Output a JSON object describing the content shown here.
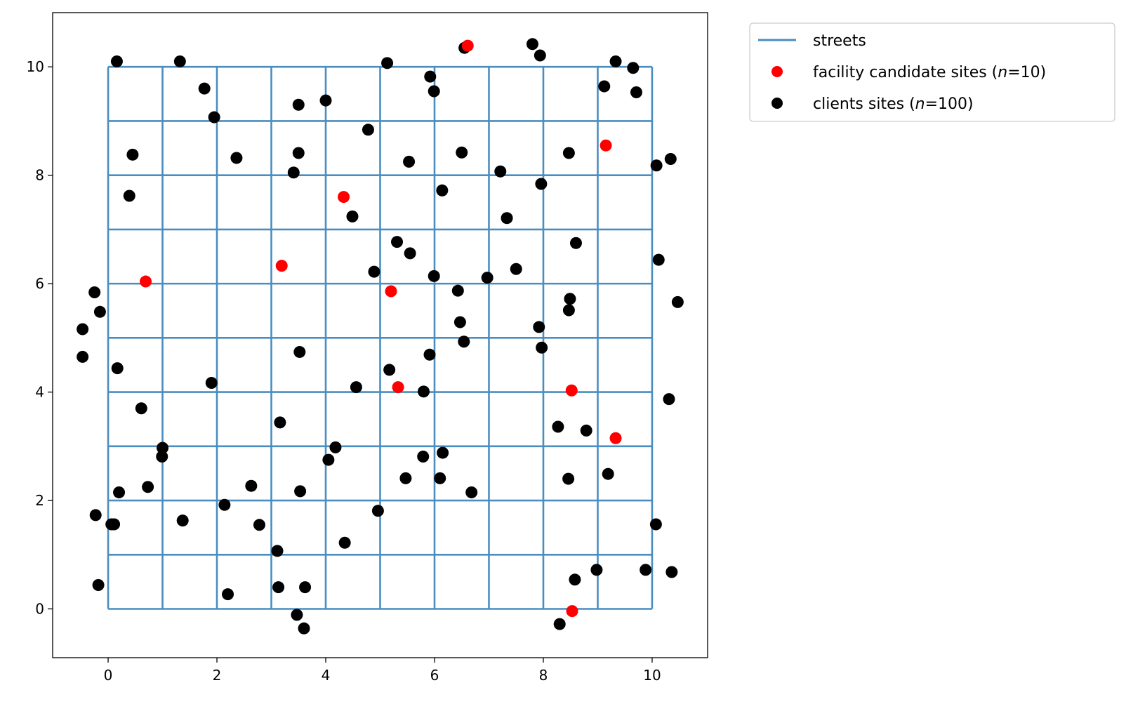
{
  "chart_data": {
    "type": "scatter",
    "title": "",
    "xlabel": "",
    "ylabel": "",
    "xlim": [
      -1.02,
      11.02
    ],
    "ylim": [
      -0.9,
      11.0
    ],
    "xticks": [
      0,
      2,
      4,
      6,
      8,
      10
    ],
    "yticks": [
      0,
      2,
      4,
      6,
      8,
      10
    ],
    "grid": false,
    "legend_position": "outside-top-right",
    "streets": {
      "name": "streets",
      "color": "#4a8dc0",
      "x_range": [
        0,
        10
      ],
      "y_range": [
        0,
        10
      ],
      "vertical_x": [
        0,
        1,
        2,
        3,
        4,
        5,
        6,
        7,
        8,
        9,
        10
      ],
      "horizontal_y": [
        0,
        1,
        2,
        3,
        4,
        5,
        6,
        7,
        8,
        9,
        10
      ]
    },
    "series": [
      {
        "name": "clients sites (n=100)",
        "legend_prefix": "clients sites (",
        "legend_italic": "n",
        "legend_suffix": "=100)",
        "color": "#000000",
        "points": [
          [
            0.16,
            10.1
          ],
          [
            1.32,
            10.1
          ],
          [
            1.77,
            9.6
          ],
          [
            1.95,
            9.07
          ],
          [
            0.45,
            8.38
          ],
          [
            2.36,
            8.32
          ],
          [
            0.39,
            7.62
          ],
          [
            3.5,
            9.3
          ],
          [
            4.0,
            9.38
          ],
          [
            3.5,
            8.41
          ],
          [
            3.41,
            8.05
          ],
          [
            4.78,
            8.84
          ],
          [
            5.13,
            10.07
          ],
          [
            5.92,
            9.82
          ],
          [
            5.99,
            9.55
          ],
          [
            5.53,
            8.25
          ],
          [
            6.5,
            8.42
          ],
          [
            6.55,
            10.35
          ],
          [
            7.8,
            10.42
          ],
          [
            7.94,
            10.21
          ],
          [
            9.12,
            9.64
          ],
          [
            9.33,
            10.1
          ],
          [
            9.65,
            9.98
          ],
          [
            9.71,
            9.53
          ],
          [
            8.47,
            8.41
          ],
          [
            7.96,
            7.84
          ],
          [
            7.21,
            8.07
          ],
          [
            6.14,
            7.72
          ],
          [
            10.08,
            8.18
          ],
          [
            10.34,
            8.3
          ],
          [
            4.49,
            7.24
          ],
          [
            7.33,
            7.21
          ],
          [
            5.31,
            6.77
          ],
          [
            5.55,
            6.56
          ],
          [
            8.6,
            6.75
          ],
          [
            10.12,
            6.44
          ],
          [
            4.89,
            6.22
          ],
          [
            5.99,
            6.14
          ],
          [
            6.97,
            6.11
          ],
          [
            7.5,
            6.27
          ],
          [
            6.43,
            5.87
          ],
          [
            8.49,
            5.72
          ],
          [
            8.47,
            5.51
          ],
          [
            10.47,
            5.66
          ],
          [
            -0.25,
            5.84
          ],
          [
            -0.15,
            5.48
          ],
          [
            -0.47,
            5.16
          ],
          [
            -0.47,
            4.65
          ],
          [
            6.47,
            5.29
          ],
          [
            6.54,
            4.93
          ],
          [
            7.92,
            5.2
          ],
          [
            7.97,
            4.82
          ],
          [
            3.52,
            4.74
          ],
          [
            5.17,
            4.41
          ],
          [
            5.91,
            4.69
          ],
          [
            0.17,
            4.44
          ],
          [
            1.9,
            4.17
          ],
          [
            4.56,
            4.09
          ],
          [
            5.8,
            4.01
          ],
          [
            10.31,
            3.87
          ],
          [
            0.61,
            3.7
          ],
          [
            3.16,
            3.44
          ],
          [
            8.27,
            3.36
          ],
          [
            8.79,
            3.29
          ],
          [
            1.0,
            2.97
          ],
          [
            0.99,
            2.81
          ],
          [
            4.18,
            2.98
          ],
          [
            4.05,
            2.75
          ],
          [
            5.79,
            2.81
          ],
          [
            6.15,
            2.88
          ],
          [
            9.19,
            2.49
          ],
          [
            8.46,
            2.4
          ],
          [
            6.1,
            2.41
          ],
          [
            5.47,
            2.41
          ],
          [
            6.68,
            2.15
          ],
          [
            0.73,
            2.25
          ],
          [
            0.2,
            2.15
          ],
          [
            2.63,
            2.27
          ],
          [
            3.53,
            2.17
          ],
          [
            2.14,
            1.92
          ],
          [
            4.96,
            1.81
          ],
          [
            -0.23,
            1.73
          ],
          [
            0.06,
            1.56
          ],
          [
            0.11,
            1.56
          ],
          [
            1.37,
            1.63
          ],
          [
            2.78,
            1.55
          ],
          [
            10.07,
            1.56
          ],
          [
            4.35,
            1.22
          ],
          [
            3.11,
            1.07
          ],
          [
            -0.18,
            0.44
          ],
          [
            3.13,
            0.4
          ],
          [
            3.62,
            0.4
          ],
          [
            2.2,
            0.27
          ],
          [
            8.58,
            0.54
          ],
          [
            8.98,
            0.72
          ],
          [
            9.88,
            0.72
          ],
          [
            10.36,
            0.68
          ],
          [
            3.47,
            -0.11
          ],
          [
            3.6,
            -0.36
          ],
          [
            8.3,
            -0.28
          ]
        ]
      },
      {
        "name": "facility candidate sites (n=10)",
        "legend_prefix": "facility candidate sites (",
        "legend_italic": "n",
        "legend_suffix": "=10)",
        "color": "#ff0000",
        "points": [
          [
            6.61,
            10.39
          ],
          [
            9.15,
            8.55
          ],
          [
            4.33,
            7.6
          ],
          [
            0.69,
            6.04
          ],
          [
            3.19,
            6.33
          ],
          [
            5.2,
            5.86
          ],
          [
            5.33,
            4.09
          ],
          [
            8.52,
            4.03
          ],
          [
            9.33,
            3.15
          ],
          [
            8.53,
            -0.04
          ]
        ]
      }
    ]
  }
}
